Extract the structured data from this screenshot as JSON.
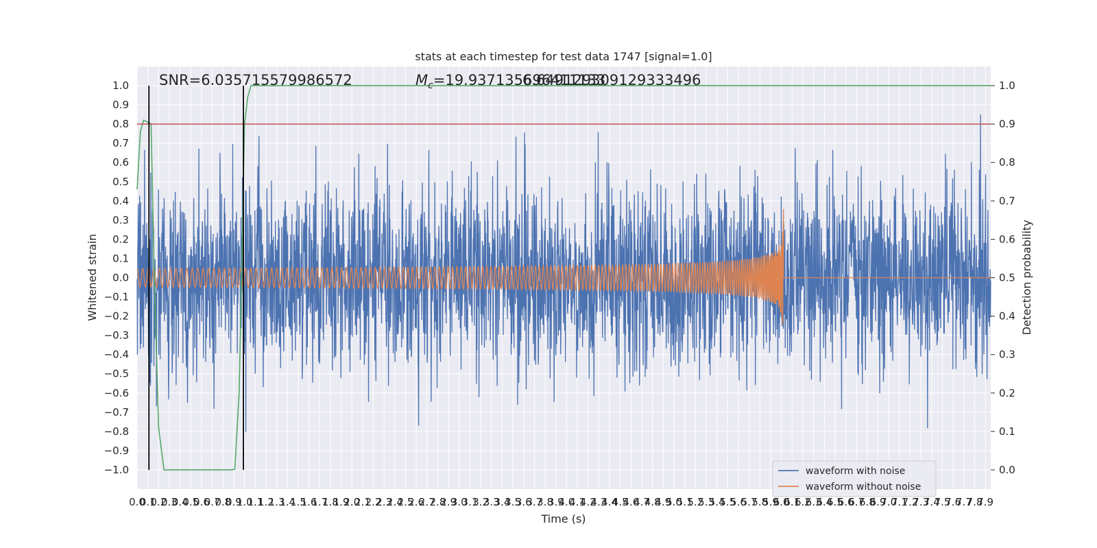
{
  "chart_data": {
    "type": "line",
    "title": "stats at each timestep for test data 1747 [signal=1.0]",
    "xlabel": "Time (s)",
    "ylabel": "Whitened strain",
    "y2label": "Detection probability",
    "xlim": [
      0.0,
      7.95
    ],
    "ylim": [
      -1.1,
      1.1
    ],
    "y2lim": [
      -0.05,
      1.05
    ],
    "x_tick_step": 0.1,
    "x_ticks_max": 7.9,
    "y_ticks": [
      -1.0,
      -0.9,
      -0.8,
      -0.7,
      -0.6,
      -0.5,
      -0.4,
      -0.3,
      -0.2,
      -0.1,
      0.0,
      0.1,
      0.2,
      0.3,
      0.4,
      0.5,
      0.6,
      0.7,
      0.8,
      0.9,
      1.0
    ],
    "y2_ticks": [
      0.0,
      0.1,
      0.2,
      0.3,
      0.4,
      0.5,
      0.6,
      0.7,
      0.8,
      0.9,
      1.0
    ],
    "grid": true,
    "legend_placement": "lower-right",
    "annotations": {
      "snr": "SNR=6.035715579986572",
      "mc_symbol": "M",
      "mc_sub": "c",
      "mc_value": "=19.937135696411133",
      "overlap": "6.649129309129333496"
    },
    "series": [
      {
        "name": "waveform with noise",
        "color": "#4c72b0",
        "axis": "left",
        "kind": "noise",
        "noise_std": 0.24,
        "noise_max": 0.99,
        "x_range": [
          0.0,
          7.95
        ]
      },
      {
        "name": "waveform without noise",
        "color": "#dd8452",
        "axis": "left",
        "kind": "chirp",
        "t_start": 0.0,
        "t_merge": 6.02,
        "peak_amplitude": 0.36
      },
      {
        "name": "",
        "color": "#55a868",
        "axis": "right",
        "kind": "probability",
        "x": [
          0.0,
          0.03,
          0.06,
          0.1,
          0.13,
          0.16,
          0.2,
          0.25,
          0.3,
          0.5,
          0.7,
          0.8,
          0.88,
          0.91,
          0.95,
          0.98,
          1.0,
          1.03,
          1.06,
          1.5,
          3.0,
          5.0,
          7.0,
          7.95
        ],
        "values": [
          0.73,
          0.88,
          0.91,
          0.905,
          0.9,
          0.5,
          0.11,
          0.0,
          0.0,
          0.0,
          0.0,
          0.0,
          0.0,
          0.002,
          0.2,
          0.6,
          0.9,
          0.97,
          1.0,
          1.0,
          1.0,
          1.0,
          1.0,
          1.0
        ]
      }
    ],
    "threshold": {
      "value": 0.9,
      "axis": "right",
      "color": "#c44e52"
    },
    "vlines": [
      {
        "x": 0.11,
        "color": "#000000"
      },
      {
        "x": 0.99,
        "color": "#000000"
      }
    ]
  }
}
